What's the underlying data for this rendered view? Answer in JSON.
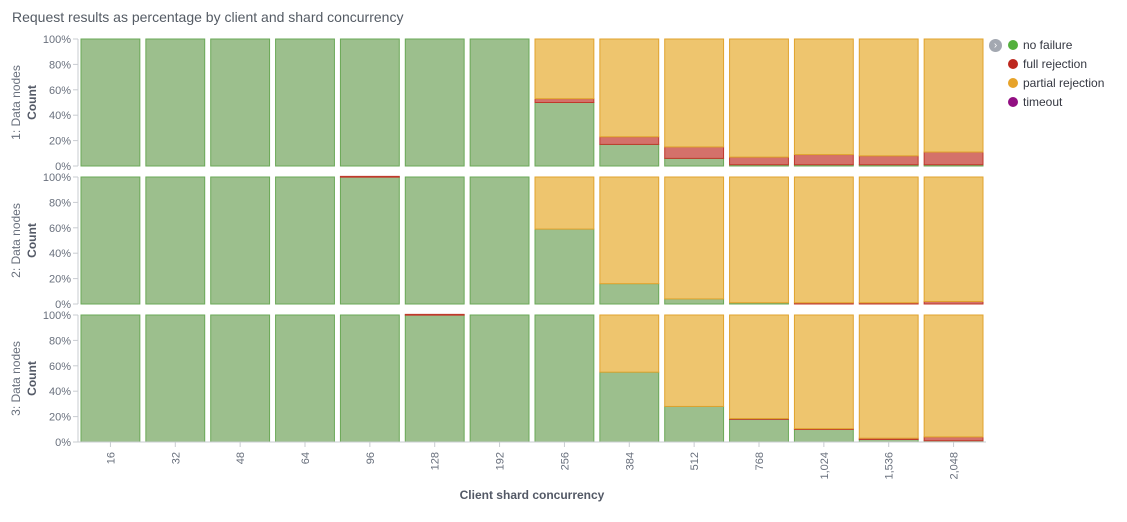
{
  "title": "Request results as percentage by client and shard concurrency",
  "legend": [
    {
      "label": "no failure",
      "color": "#54b03d"
    },
    {
      "label": "full rejection",
      "color": "#bd271e"
    },
    {
      "label": "partial rejection",
      "color": "#e7a32a"
    },
    {
      "label": "timeout",
      "color": "#920f82"
    }
  ],
  "legend_toggle_icon": "chevron-right-icon",
  "colors": {
    "no_failure_fill": "#9cbf8d",
    "no_failure_stroke": "#6aa857",
    "full_rejection_fill": "#d4716a",
    "full_rejection_stroke": "#c0392b",
    "partial_rejection_fill": "#eec56e",
    "partial_rejection_stroke": "#e0a32e",
    "timeout_fill": "#a05a96"
  },
  "chart_data": {
    "type": "bar",
    "stacked": true,
    "percentage": true,
    "xlabel": "Client shard concurrency",
    "ylabel": "Count",
    "ylim": [
      0,
      100
    ],
    "yticks": [
      "0%",
      "20%",
      "40%",
      "60%",
      "80%",
      "100%"
    ],
    "categories": [
      "16",
      "32",
      "48",
      "64",
      "96",
      "128",
      "192",
      "256",
      "384",
      "512",
      "768",
      "1,024",
      "1,536",
      "2,048"
    ],
    "series_names": [
      "no failure",
      "full rejection",
      "partial rejection",
      "timeout"
    ],
    "panels": [
      {
        "label": "1: Data nodes",
        "series": [
          {
            "name": "no failure",
            "values": [
              100,
              100,
              100,
              100,
              100,
              100,
              100,
              50,
              17,
              6,
              1,
              1,
              1,
              1
            ]
          },
          {
            "name": "full rejection",
            "values": [
              0,
              0,
              0,
              0,
              0,
              0,
              0,
              3,
              6,
              9,
              6,
              8,
              7,
              10
            ]
          },
          {
            "name": "partial rejection",
            "values": [
              0,
              0,
              0,
              0,
              0,
              0,
              0,
              47,
              77,
              85,
              93,
              91,
              92,
              89
            ]
          },
          {
            "name": "timeout",
            "values": [
              0,
              0,
              0,
              0,
              0,
              0,
              0,
              0,
              0,
              0,
              0,
              0,
              0,
              0
            ]
          }
        ]
      },
      {
        "label": "2: Data nodes",
        "series": [
          {
            "name": "no failure",
            "values": [
              100,
              100,
              100,
              100,
              100,
              100,
              100,
              59,
              16,
              4,
              1,
              0,
              0,
              0
            ]
          },
          {
            "name": "full rejection",
            "values": [
              0,
              0,
              0,
              0,
              0.5,
              0,
              0,
              0,
              0,
              0,
              0,
              1,
              1,
              2
            ]
          },
          {
            "name": "partial rejection",
            "values": [
              0,
              0,
              0,
              0,
              0,
              0,
              0,
              41,
              84,
              96,
              99,
              99,
              99,
              98
            ]
          },
          {
            "name": "timeout",
            "values": [
              0,
              0,
              0,
              0,
              0,
              0,
              0,
              0,
              0,
              0,
              0,
              0,
              0,
              0
            ]
          }
        ]
      },
      {
        "label": "3: Data nodes",
        "series": [
          {
            "name": "no failure",
            "values": [
              100,
              100,
              100,
              100,
              100,
              100,
              100,
              100,
              55,
              28,
              18,
              10,
              2,
              1
            ]
          },
          {
            "name": "full rejection",
            "values": [
              0,
              0,
              0,
              0,
              0,
              0.5,
              0,
              0,
              0,
              0,
              0.5,
              0.5,
              1,
              3
            ]
          },
          {
            "name": "partial rejection",
            "values": [
              0,
              0,
              0,
              0,
              0,
              0,
              0,
              0,
              45,
              72,
              81.5,
              89.5,
              97,
              96
            ]
          },
          {
            "name": "timeout",
            "values": [
              0,
              0,
              0,
              0,
              0,
              0,
              0,
              0,
              0,
              0,
              0,
              0,
              0,
              0
            ]
          }
        ]
      }
    ]
  }
}
